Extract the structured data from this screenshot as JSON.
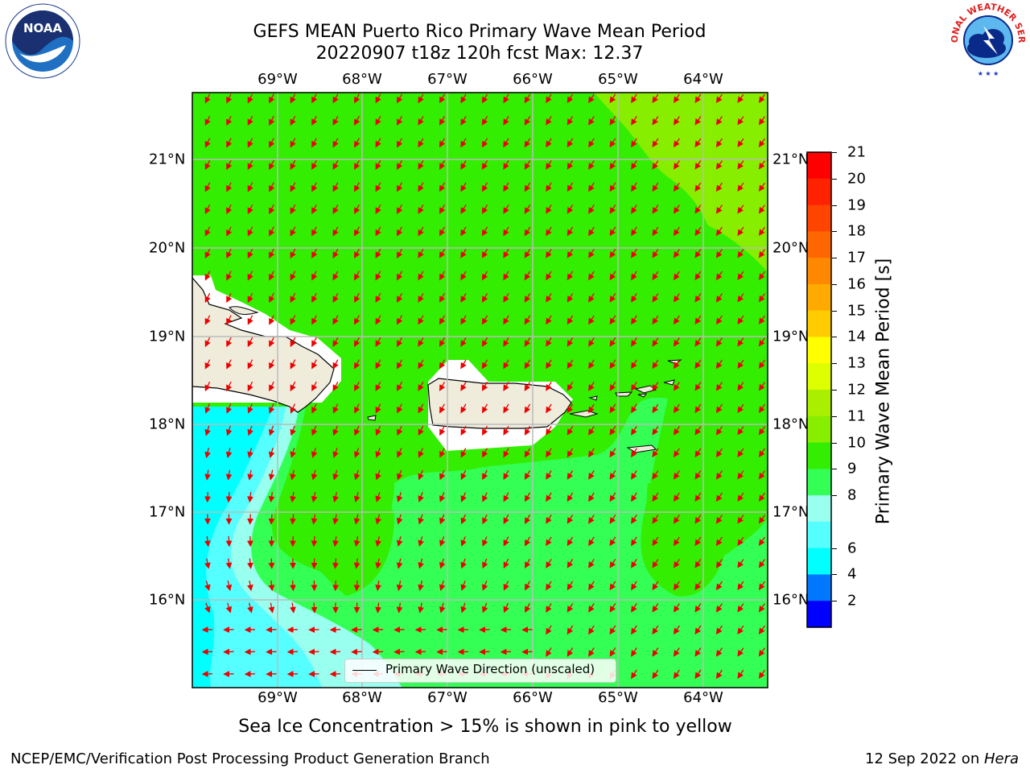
{
  "title": {
    "line1": "GEFS MEAN Puerto Rico Primary Wave Mean Period",
    "line2": "20220907 t18z 120h fcst   Max: 12.37"
  },
  "map": {
    "lon_labels": [
      "69°W",
      "68°W",
      "67°W",
      "66°W",
      "65°W",
      "64°W"
    ],
    "lat_labels": [
      "21°N",
      "20°N",
      "19°N",
      "18°N",
      "17°N",
      "16°N"
    ],
    "land_color": "#efecdc",
    "ocean_colors": {
      "period_11_12": "#33ee00",
      "period_12_13": "#88ee00",
      "period_10_11": "#33ff55",
      "period_9_10": "#99ffee",
      "period_8_9": "#55ffff",
      "period_6_8": "#00ffff"
    },
    "arrow_color": "#ee0000"
  },
  "legend": {
    "label": "Primary Wave Direction (unscaled)"
  },
  "colorbar": {
    "title": "Primary Wave Mean Period [s]",
    "ticks": [
      "21",
      "20",
      "19",
      "18",
      "17",
      "16",
      "15",
      "14",
      "13",
      "12",
      "11",
      "10",
      "9",
      "8",
      "6",
      "4",
      "2"
    ],
    "colors": [
      "#ff0000",
      "#ff2200",
      "#ff4400",
      "#ff6600",
      "#ff8800",
      "#ffaa00",
      "#ffcc00",
      "#ffff00",
      "#ddff00",
      "#aaee00",
      "#88ee00",
      "#33ee00",
      "#33ff55",
      "#99ffee",
      "#55ffff",
      "#00ffff",
      "#0077ff",
      "#0000ff"
    ]
  },
  "note": "Sea Ice Concentration > 15% is shown in pink to yellow",
  "footer": {
    "left": "NCEP/EMC/Verification Post Processing Product Generation Branch",
    "right_prefix": "12 Sep 2022 on ",
    "right_host": "Hera"
  },
  "logos": {
    "noaa_text": "NOAA",
    "nws_text": "NATIONAL WEATHER SERVICE"
  }
}
